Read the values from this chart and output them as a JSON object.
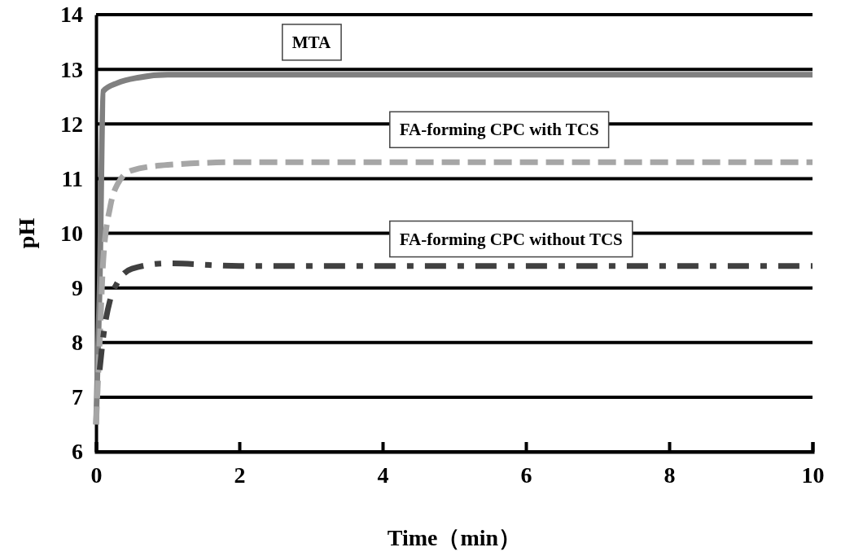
{
  "chart_data": {
    "type": "line",
    "xlabel": "Time（min）",
    "ylabel": "pH",
    "xlim": [
      0,
      10
    ],
    "ylim": [
      6,
      14
    ],
    "xticks": [
      0,
      2,
      4,
      6,
      8,
      10
    ],
    "yticks": [
      6,
      7,
      8,
      9,
      10,
      11,
      12,
      13,
      14
    ],
    "grid": "y",
    "legend": false,
    "series": [
      {
        "name": "MTA",
        "color": "#808080",
        "line_style": "solid",
        "x": [
          0,
          0.05,
          0.1,
          0.3,
          0.6,
          1,
          2,
          10
        ],
        "values": [
          6.5,
          9,
          12.6,
          12.75,
          12.85,
          12.9,
          12.9,
          12.9
        ]
      },
      {
        "name": "FA-forming CPC with TCS",
        "color": "#a6a6a6",
        "line_style": "dashed",
        "x": [
          0,
          0.05,
          0.1,
          0.2,
          0.3,
          0.5,
          1,
          2,
          10
        ],
        "values": [
          6.5,
          8,
          9.5,
          10.5,
          10.9,
          11.15,
          11.25,
          11.3,
          11.3
        ]
      },
      {
        "name": "FA-forming CPC without TCS",
        "color": "#404040",
        "line_style": "dashdot",
        "x": [
          0.05,
          0.1,
          0.2,
          0.3,
          0.5,
          1,
          2,
          10
        ],
        "values": [
          7.5,
          8.1,
          8.8,
          9.1,
          9.35,
          9.45,
          9.4,
          9.4
        ]
      }
    ]
  }
}
